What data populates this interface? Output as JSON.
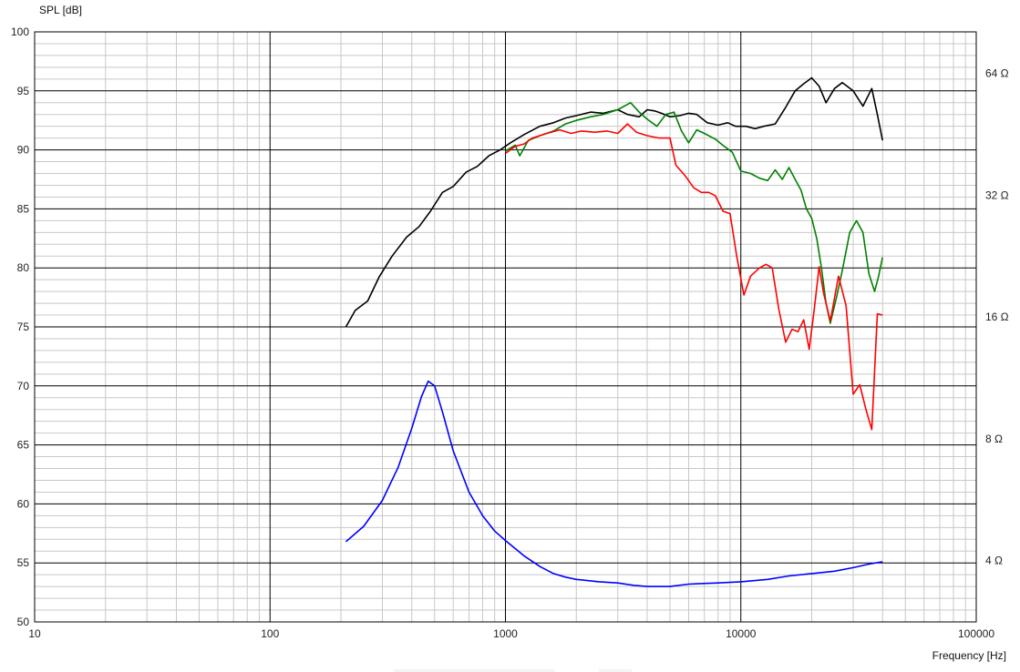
{
  "chart_data": {
    "type": "line",
    "ylabel": "SPL [dB]",
    "xlabel": "Frequency [Hz]",
    "x_scale": "log",
    "xlim": [
      10,
      100000
    ],
    "ylim": [
      50,
      100
    ],
    "x_ticks": [
      "10",
      "100",
      "1000",
      "10000",
      "100000"
    ],
    "y_ticks": [
      "50",
      "55",
      "60",
      "65",
      "70",
      "75",
      "80",
      "85",
      "90",
      "95",
      "100"
    ],
    "grid": true,
    "right_axis": {
      "scale": "log2",
      "ticks": [
        {
          "label": "4 Ω",
          "ohm": 4
        },
        {
          "label": "8 Ω",
          "ohm": 8
        },
        {
          "label": "16 Ω",
          "ohm": 16
        },
        {
          "label": "32 Ω",
          "ohm": 32
        },
        {
          "label": "64 Ω",
          "ohm": 64
        }
      ],
      "ohm_at_50dB": 2.82,
      "db_per_octave": 10.32
    },
    "series": [
      {
        "color": "#000000",
        "axis": "left",
        "points": [
          [
            210,
            75.0
          ],
          [
            230,
            76.4
          ],
          [
            260,
            77.2
          ],
          [
            290,
            79.2
          ],
          [
            330,
            81.0
          ],
          [
            380,
            82.6
          ],
          [
            430,
            83.5
          ],
          [
            480,
            84.8
          ],
          [
            540,
            86.4
          ],
          [
            600,
            86.9
          ],
          [
            680,
            88.1
          ],
          [
            760,
            88.6
          ],
          [
            850,
            89.5
          ],
          [
            950,
            90.0
          ],
          [
            1050,
            90.6
          ],
          [
            1200,
            91.3
          ],
          [
            1400,
            92.0
          ],
          [
            1600,
            92.3
          ],
          [
            1800,
            92.7
          ],
          [
            2000,
            92.9
          ],
          [
            2300,
            93.2
          ],
          [
            2600,
            93.1
          ],
          [
            3000,
            93.4
          ],
          [
            3300,
            93.0
          ],
          [
            3700,
            92.8
          ],
          [
            4000,
            93.4
          ],
          [
            4300,
            93.3
          ],
          [
            4600,
            93.1
          ],
          [
            5000,
            92.8
          ],
          [
            5500,
            92.9
          ],
          [
            6000,
            93.1
          ],
          [
            6500,
            93.0
          ],
          [
            7200,
            92.3
          ],
          [
            8000,
            92.1
          ],
          [
            8800,
            92.3
          ],
          [
            9500,
            92.0
          ],
          [
            10500,
            92.0
          ],
          [
            11500,
            91.8
          ],
          [
            12500,
            92.0
          ],
          [
            14000,
            92.2
          ],
          [
            15500,
            93.6
          ],
          [
            17000,
            95.0
          ],
          [
            18500,
            95.6
          ],
          [
            20000,
            96.1
          ],
          [
            21500,
            95.4
          ],
          [
            23000,
            94.0
          ],
          [
            25000,
            95.2
          ],
          [
            27000,
            95.7
          ],
          [
            30000,
            95.0
          ],
          [
            33000,
            93.7
          ],
          [
            36000,
            95.2
          ],
          [
            38000,
            93.0
          ],
          [
            40000,
            90.8
          ]
        ]
      },
      {
        "color": "#008000",
        "axis": "left",
        "points": [
          [
            1000,
            89.9
          ],
          [
            1100,
            90.4
          ],
          [
            1150,
            89.5
          ],
          [
            1250,
            90.8
          ],
          [
            1400,
            91.2
          ],
          [
            1600,
            91.6
          ],
          [
            1800,
            92.2
          ],
          [
            2000,
            92.5
          ],
          [
            2300,
            92.8
          ],
          [
            2600,
            93.0
          ],
          [
            3000,
            93.4
          ],
          [
            3400,
            94.0
          ],
          [
            3700,
            93.2
          ],
          [
            4000,
            92.6
          ],
          [
            4400,
            92.0
          ],
          [
            4800,
            93.0
          ],
          [
            5200,
            93.2
          ],
          [
            5600,
            91.6
          ],
          [
            6000,
            90.6
          ],
          [
            6500,
            91.7
          ],
          [
            7000,
            91.4
          ],
          [
            7800,
            90.9
          ],
          [
            8500,
            90.3
          ],
          [
            9200,
            89.8
          ],
          [
            10000,
            88.2
          ],
          [
            11000,
            88.0
          ],
          [
            12000,
            87.6
          ],
          [
            13000,
            87.4
          ],
          [
            14000,
            88.3
          ],
          [
            15000,
            87.5
          ],
          [
            16000,
            88.5
          ],
          [
            17000,
            87.5
          ],
          [
            18000,
            86.6
          ],
          [
            19000,
            85.0
          ],
          [
            20000,
            84.2
          ],
          [
            21000,
            82.5
          ],
          [
            22000,
            80.0
          ],
          [
            23000,
            77.0
          ],
          [
            24000,
            75.3
          ],
          [
            25500,
            77.5
          ],
          [
            27000,
            79.8
          ],
          [
            29000,
            83.0
          ],
          [
            31000,
            84.0
          ],
          [
            33000,
            83.0
          ],
          [
            35000,
            79.5
          ],
          [
            37000,
            78.0
          ],
          [
            38500,
            79.3
          ],
          [
            40000,
            80.9
          ]
        ]
      },
      {
        "color": "#ff0000",
        "axis": "left",
        "points": [
          [
            1000,
            89.7
          ],
          [
            1100,
            90.3
          ],
          [
            1200,
            90.5
          ],
          [
            1300,
            91.0
          ],
          [
            1500,
            91.4
          ],
          [
            1700,
            91.7
          ],
          [
            1900,
            91.4
          ],
          [
            2100,
            91.6
          ],
          [
            2400,
            91.5
          ],
          [
            2700,
            91.6
          ],
          [
            3000,
            91.4
          ],
          [
            3300,
            92.2
          ],
          [
            3600,
            91.5
          ],
          [
            4000,
            91.2
          ],
          [
            4500,
            91.0
          ],
          [
            5000,
            91.0
          ],
          [
            5300,
            88.7
          ],
          [
            5800,
            87.8
          ],
          [
            6300,
            86.8
          ],
          [
            6800,
            86.4
          ],
          [
            7300,
            86.4
          ],
          [
            7800,
            86.1
          ],
          [
            8400,
            84.8
          ],
          [
            9000,
            84.6
          ],
          [
            9600,
            81.0
          ],
          [
            10300,
            77.7
          ],
          [
            11000,
            79.3
          ],
          [
            12000,
            80.0
          ],
          [
            12800,
            80.3
          ],
          [
            13600,
            80.0
          ],
          [
            14500,
            76.5
          ],
          [
            15500,
            73.7
          ],
          [
            16500,
            74.8
          ],
          [
            17500,
            74.6
          ],
          [
            18500,
            75.6
          ],
          [
            19500,
            73.1
          ],
          [
            20500,
            76.5
          ],
          [
            21500,
            80.1
          ],
          [
            22500,
            77.8
          ],
          [
            24000,
            75.5
          ],
          [
            26000,
            79.3
          ],
          [
            28000,
            76.8
          ],
          [
            30000,
            69.3
          ],
          [
            32000,
            70.1
          ],
          [
            34000,
            68.0
          ],
          [
            36000,
            66.3
          ],
          [
            38000,
            76.1
          ],
          [
            40000,
            76.0
          ]
        ]
      },
      {
        "color": "#0000ff",
        "axis": "right",
        "points": [
          [
            210,
            56.8
          ],
          [
            250,
            58.1
          ],
          [
            300,
            60.3
          ],
          [
            350,
            63.1
          ],
          [
            400,
            66.4
          ],
          [
            440,
            69.1
          ],
          [
            470,
            70.4
          ],
          [
            500,
            70.0
          ],
          [
            540,
            67.8
          ],
          [
            600,
            64.5
          ],
          [
            700,
            61.0
          ],
          [
            800,
            59.0
          ],
          [
            900,
            57.7
          ],
          [
            1000,
            56.9
          ],
          [
            1200,
            55.6
          ],
          [
            1400,
            54.7
          ],
          [
            1600,
            54.1
          ],
          [
            1800,
            53.8
          ],
          [
            2000,
            53.6
          ],
          [
            2500,
            53.4
          ],
          [
            3000,
            53.3
          ],
          [
            3500,
            53.1
          ],
          [
            4000,
            53.0
          ],
          [
            5000,
            53.0
          ],
          [
            6000,
            53.2
          ],
          [
            8000,
            53.3
          ],
          [
            10000,
            53.4
          ],
          [
            13000,
            53.6
          ],
          [
            16000,
            53.9
          ],
          [
            20000,
            54.1
          ],
          [
            25000,
            54.3
          ],
          [
            30000,
            54.6
          ],
          [
            35000,
            54.9
          ],
          [
            40000,
            55.1
          ]
        ]
      }
    ]
  },
  "footer": {
    "blank_swatch_a_color": "#f4f4f4",
    "blank_swatch_b_color": "#f4f4f4"
  }
}
